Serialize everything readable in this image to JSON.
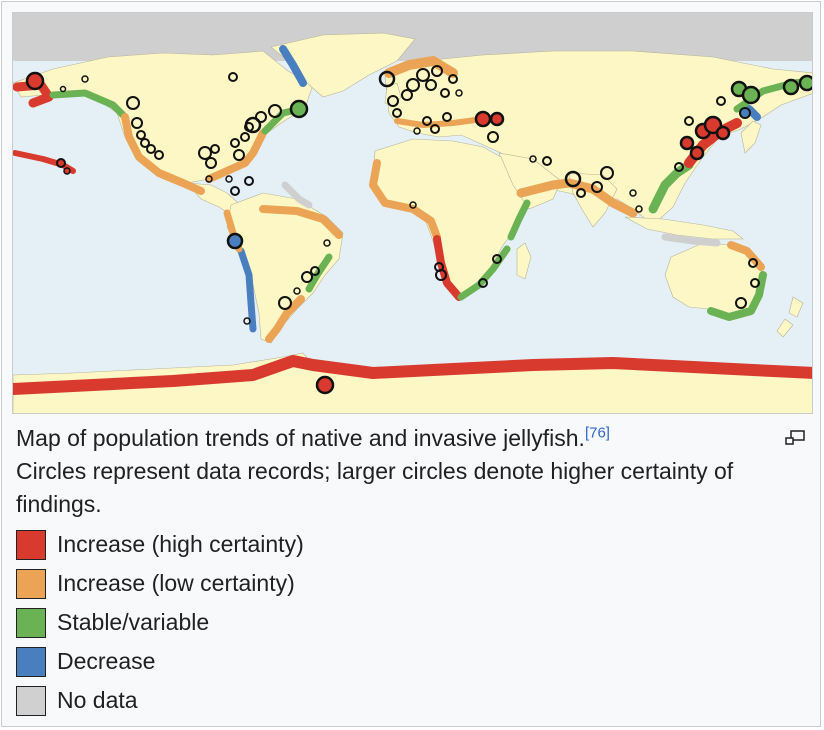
{
  "caption": {
    "title": "Map of population trends of native and invasive jellyfish.",
    "reference": "[76]",
    "text": "Circles represent data records; larger circles denote higher certainty of findings."
  },
  "legend": [
    {
      "label": "Increase (high certainty)",
      "color": "#d83a2e"
    },
    {
      "label": "Increase (low certainty)",
      "color": "#eba456"
    },
    {
      "label": "Stable/variable",
      "color": "#6bb254"
    },
    {
      "label": "Decrease",
      "color": "#4a7fbf"
    },
    {
      "label": "No data",
      "color": "#d0d0d0"
    }
  ],
  "map": {
    "ocean_color": "#e4f0f6",
    "land_color": "#fcf7c4",
    "no_data_color": "#cfcfcf",
    "magnify_icon": "magnify-icon"
  }
}
